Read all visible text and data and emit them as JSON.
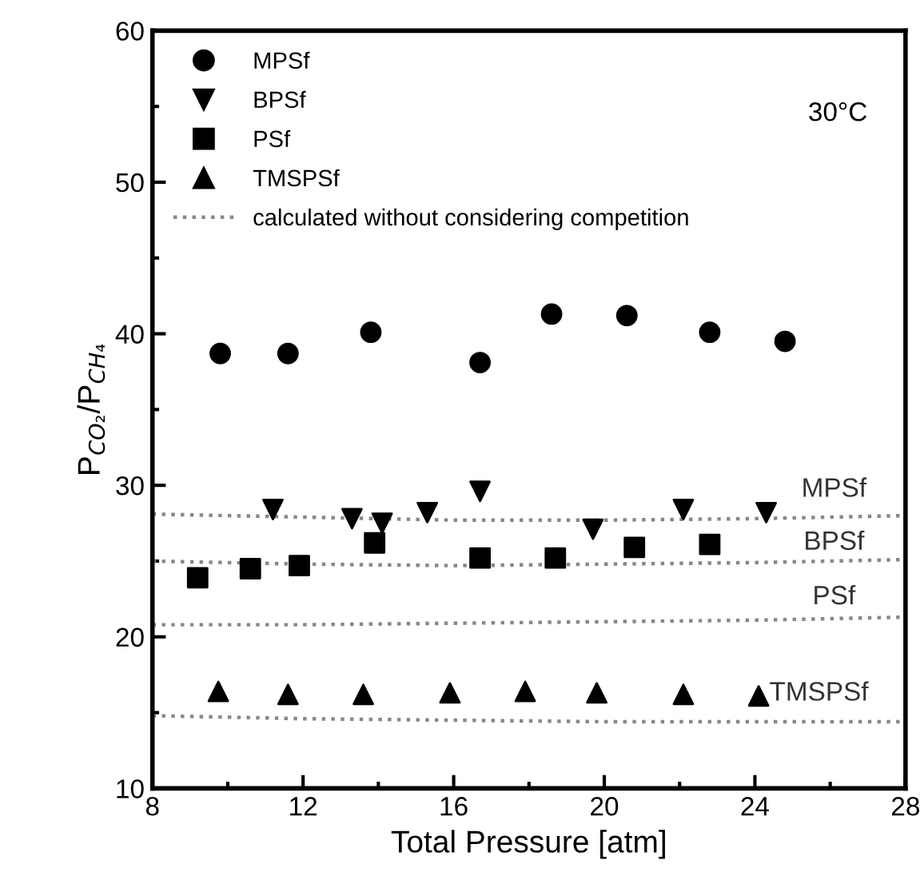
{
  "chart_data": {
    "type": "scatter",
    "xlabel": "Total Pressure [atm]",
    "ylabel": "P$_{CO₂}$/P$_{CH₄}$",
    "xlim": [
      8,
      28
    ],
    "xticks": [
      8,
      12,
      16,
      20,
      24,
      28
    ],
    "ylim": [
      10,
      60
    ],
    "yticks": [
      10,
      20,
      30,
      40,
      50,
      60
    ],
    "grid": false,
    "legend": "top left",
    "series": [
      {
        "name": "MPSf",
        "marker": "circle",
        "color": "#000000",
        "x": [
          9.8,
          11.6,
          13.8,
          16.7,
          18.6,
          20.6,
          22.8,
          24.8
        ],
        "values": [
          38.7,
          38.7,
          40.1,
          38.1,
          41.3,
          41.2,
          40.1,
          39.5
        ]
      },
      {
        "name": "BPSf",
        "marker": "triangle_down",
        "color": "#000000",
        "x": [
          11.2,
          13.3,
          14.1,
          15.3,
          16.7,
          19.7,
          22.1,
          24.3
        ],
        "values": [
          28.4,
          27.8,
          27.5,
          28.2,
          29.6,
          27.1,
          28.4,
          28.2
        ]
      },
      {
        "name": "PSf",
        "marker": "square",
        "color": "#000000",
        "x": [
          9.2,
          10.6,
          11.9,
          13.9,
          16.7,
          18.7,
          20.8,
          22.8
        ],
        "values": [
          23.9,
          24.5,
          24.7,
          26.2,
          25.2,
          25.2,
          25.9,
          26.1
        ]
      },
      {
        "name": "TMSPSf",
        "marker": "triangle",
        "color": "#000000",
        "x": [
          9.75,
          11.6,
          13.6,
          15.9,
          17.9,
          19.8,
          22.1,
          24.1
        ],
        "values": [
          16.4,
          16.2,
          16.2,
          16.3,
          16.4,
          16.3,
          16.2,
          16.1
        ]
      },
      {
        "name": "calculated without considering competition",
        "type": "line",
        "line_style": "dotted",
        "color": "#888888",
        "x": [
          8,
          12,
          16,
          20,
          24,
          28
        ],
        "values": [
          28.1,
          27.9,
          27.7,
          27.7,
          27.8,
          28.0
        ]
      },
      {
        "type": "line",
        "line_style": "dotted",
        "color": "#888888",
        "x": [
          8,
          12,
          16,
          20,
          24,
          28
        ],
        "values": [
          25.0,
          24.8,
          24.7,
          24.8,
          24.9,
          25.1
        ]
      },
      {
        "type": "line",
        "line_style": "dotted",
        "color": "#888888",
        "x": [
          8,
          12,
          16,
          20,
          24,
          28
        ],
        "values": [
          20.8,
          20.8,
          20.9,
          21.0,
          21.1,
          21.3
        ]
      },
      {
        "type": "line",
        "line_style": "dotted",
        "color": "#888888",
        "x": [
          8,
          12,
          16,
          20,
          24,
          28
        ],
        "values": [
          14.8,
          14.6,
          14.5,
          14.4,
          14.4,
          14.4
        ]
      }
    ],
    "annotations": [
      "30°C",
      "MPSf",
      "BPSf",
      "PSf",
      "TMSPSf"
    ]
  }
}
